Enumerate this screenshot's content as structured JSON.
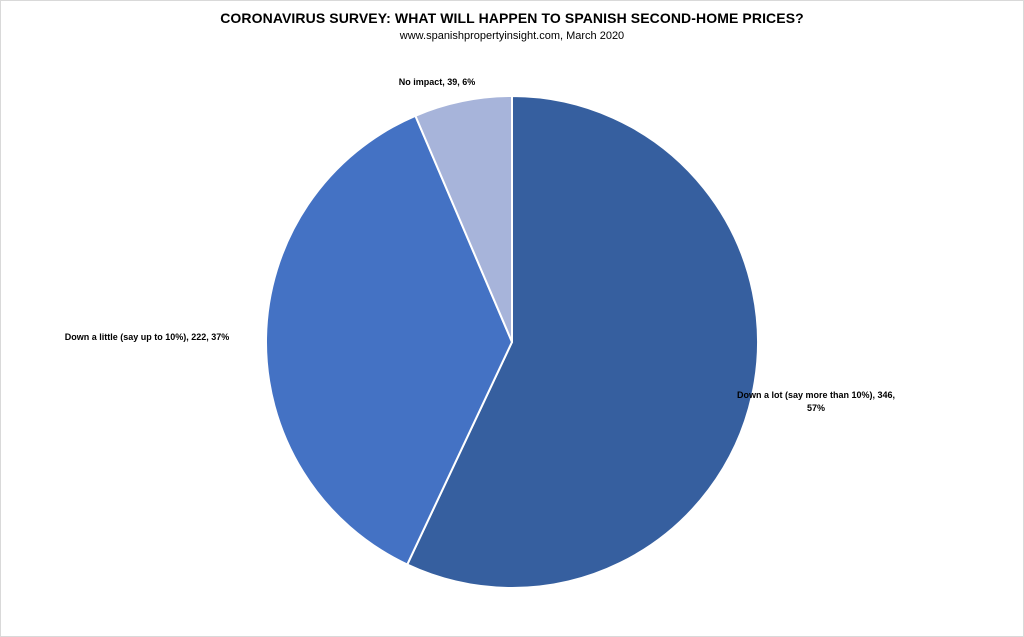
{
  "chart_data": {
    "type": "pie",
    "title": "CORONAVIRUS SURVEY: WHAT WILL HAPPEN TO SPANISH SECOND-HOME PRICES?",
    "subtitle": "www.spanishpropertyinsight.com,  March 2020",
    "slices": [
      {
        "category": "Down a lot (say more than 10%)",
        "value": 346,
        "percent": 57,
        "color": "#365f9f",
        "label_lines": [
          "Down a lot (say more than 10%), 346,",
          "57%"
        ]
      },
      {
        "category": "Down a little (say up to 10%)",
        "value": 222,
        "percent": 37,
        "color": "#4472c4",
        "label_lines": [
          "Down a little (say up to 10%), 222, 37%"
        ]
      },
      {
        "category": "No impact",
        "value": 39,
        "percent": 6,
        "color": "#a7b4da",
        "label_lines": [
          "No impact, 39, 6%"
        ]
      }
    ],
    "start_angle": "12 o'clock",
    "direction": "clockwise",
    "legend": "none",
    "slice_border_color": "#ffffff"
  }
}
